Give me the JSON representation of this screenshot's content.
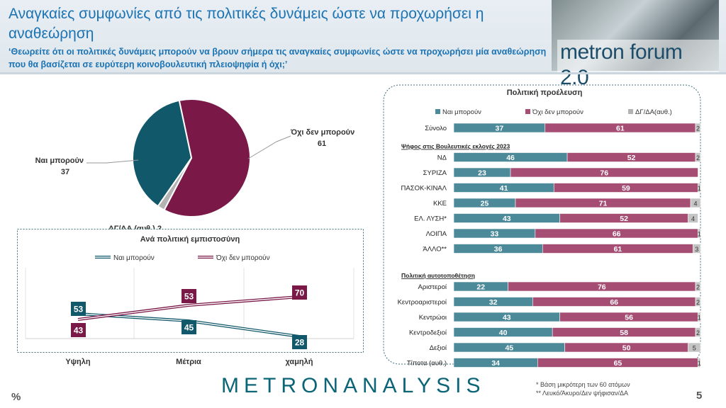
{
  "header": {
    "title": "Αναγκαίες συμφωνίες από τις πολιτικές δυνάμεις ώστε να προχωρήσει η αναθεώρηση",
    "question": "‘Θεωρείτε ότι οι πολιτικές δυνάμεις μπορούν να βρουν σήμερα τις αναγκαίες συμφωνίες ώστε να προχωρήσει μία αναθεώρηση που θα βασίζεται σε ευρύτερη κοινοβουλευτική πλειοψηφία ή όχι;’",
    "logo": "metron forum 2.0"
  },
  "colors": {
    "yes": "#2e7485",
    "no": "#7a1848",
    "other": "#b3b3b3",
    "yes_dark": "#10586a",
    "yes_light": "#4d8a99",
    "no_light": "#a54d72"
  },
  "chart_data": [
    {
      "type": "pie",
      "slices": [
        {
          "label": "Όχι δεν μπορούν",
          "value": 61
        },
        {
          "label": "ΔΓ/ΔΑ (αυθ.)",
          "value": 2
        },
        {
          "label": "Ναι μπορούν",
          "value": 37
        }
      ]
    },
    {
      "type": "line",
      "title": "Ανά πολιτική εμπιστοσύνη",
      "categories": [
        "Υψηλη",
        "Μέτρια",
        "χαμηλή"
      ],
      "series": [
        {
          "name": "Ναι μπορούν",
          "values": [
            53,
            45,
            28
          ]
        },
        {
          "name": "Όχι δεν μπορούν",
          "values": [
            43,
            53,
            70
          ]
        }
      ]
    },
    {
      "type": "bar",
      "title": "Πολιτική προέλευση",
      "legend": [
        "Ναι μπορούν",
        "Όχι δεν μπορούν",
        "ΔΓ/ΔΑ(αυθ.)"
      ],
      "groups": [
        {
          "heading": "",
          "rows": [
            {
              "label": "Σύνολο",
              "values": [
                37,
                61,
                2
              ]
            }
          ]
        },
        {
          "heading": "Ψήφος στις Βουλευτικές εκλογές 2023",
          "rows": [
            {
              "label": "ΝΔ",
              "values": [
                46,
                52,
                2
              ]
            },
            {
              "label": "ΣΥΡΙΖΑ",
              "values": [
                23,
                76,
                null
              ]
            },
            {
              "label": "ΠΑΣΟΚ-ΚΙΝΑΛ",
              "values": [
                41,
                59,
                1
              ]
            },
            {
              "label": "ΚΚΕ",
              "values": [
                25,
                71,
                4
              ]
            },
            {
              "label": "ΕΛ. ΛΥΣΗ*",
              "values": [
                43,
                52,
                4
              ]
            },
            {
              "label": "ΛΟΙΠΑ",
              "values": [
                33,
                66,
                1
              ]
            },
            {
              "label": "ΆΛΛΟ**",
              "values": [
                36,
                61,
                3
              ]
            }
          ]
        },
        {
          "heading": "Πολιτική αυτοτοποθέτηση",
          "rows": [
            {
              "label": "Αριστεροί",
              "values": [
                22,
                76,
                2
              ]
            },
            {
              "label": "Κεντροαριστεροί",
              "values": [
                32,
                66,
                2
              ]
            },
            {
              "label": "Κεντρώοι",
              "values": [
                43,
                56,
                1
              ]
            },
            {
              "label": "Κεντροδεξιοί",
              "values": [
                40,
                58,
                2
              ]
            },
            {
              "label": "Δεξιοί",
              "values": [
                45,
                50,
                5
              ]
            },
            {
              "label": "Τίποτα (αυθ.)",
              "values": [
                34,
                65,
                1
              ]
            }
          ]
        }
      ]
    }
  ],
  "footer": {
    "brand": "METRONANALYSIS",
    "note1": "*  Βάση μικρότερη των 60 ατόμων",
    "note2": "** Λευκό/Άκυρο/Δεν ψήφισαν/ΔΑ",
    "percent": "%",
    "page": "5"
  }
}
